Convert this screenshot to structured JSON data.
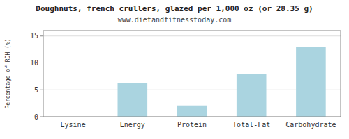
{
  "chart_data": {
    "type": "bar",
    "title": "Doughnuts, french crullers, glazed per 1,000 oz (or 28.35 g)",
    "subtitle": "www.dietandfitnesstoday.com",
    "categories": [
      "Lysine",
      "Energy",
      "Protein",
      "Total-Fat",
      "Carbohydrate"
    ],
    "values": [
      0,
      6.2,
      2.1,
      8.0,
      13.0
    ],
    "color": "#aad4e0",
    "ylabel": "Percentage of RDH (%)",
    "ylim": [
      0,
      16
    ],
    "yticks": [
      0,
      5,
      10,
      15
    ],
    "grid": true
  }
}
